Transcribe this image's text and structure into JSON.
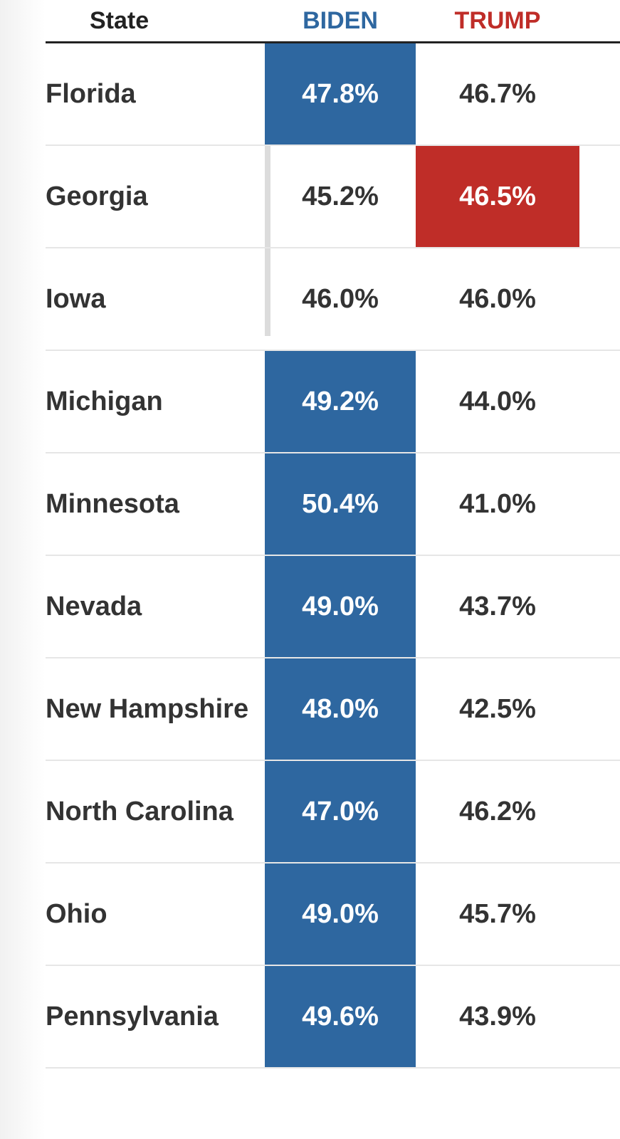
{
  "table": {
    "columns": [
      {
        "label": "State"
      },
      {
        "label": "BIDEN",
        "color": "#2e67a0"
      },
      {
        "label": "TRUMP",
        "color": "#bf2d28"
      }
    ],
    "rows": [
      [
        "Florida",
        "47.8%",
        "46.7%"
      ],
      [
        "Georgia",
        "45.2%",
        "46.5%"
      ],
      [
        "Iowa",
        "46.0%",
        "46.0%"
      ],
      [
        "Michigan",
        "49.2%",
        "44.0%"
      ],
      [
        "Minnesota",
        "50.4%",
        "41.0%"
      ],
      [
        "Nevada",
        "49.0%",
        "43.7%"
      ],
      [
        "New Hampshire",
        "48.0%",
        "42.5%"
      ],
      [
        "North Carolina",
        "47.0%",
        "46.2%"
      ],
      [
        "Ohio",
        "49.0%",
        "45.7%"
      ],
      [
        "Pennsylvania",
        "49.6%",
        "43.9%"
      ]
    ]
  }
}
